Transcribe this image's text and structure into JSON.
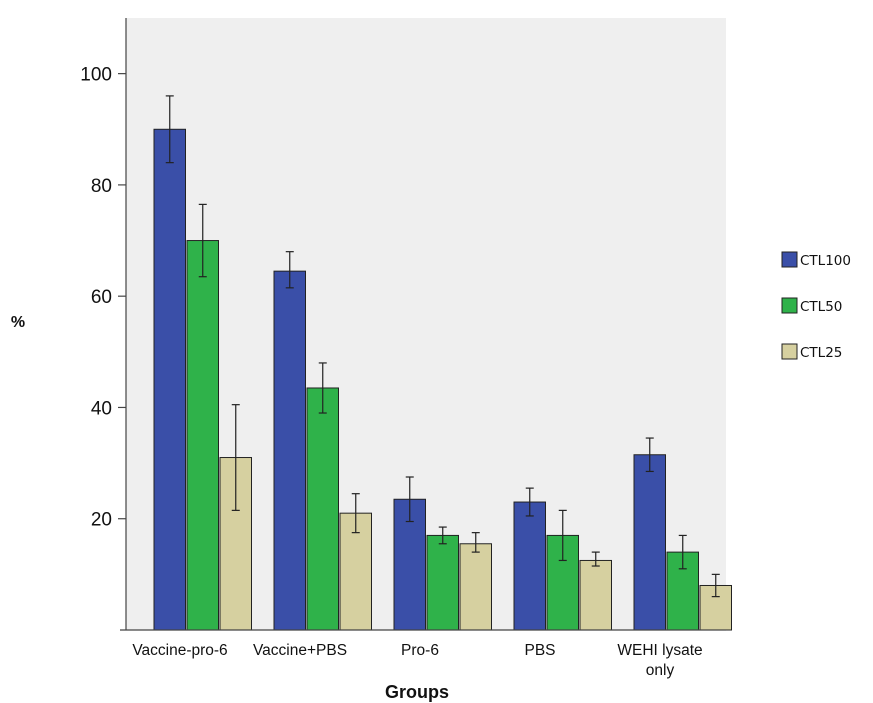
{
  "chart_data": {
    "type": "bar",
    "title": "",
    "xlabel": "Groups",
    "ylabel": "%",
    "ylim": [
      0,
      110
    ],
    "yticks": [
      20,
      40,
      60,
      80,
      100
    ],
    "grid": false,
    "legend_position": "right",
    "categories": [
      [
        "Vaccine-pro-6"
      ],
      [
        "Vaccine+PBS"
      ],
      [
        "Pro-6"
      ],
      [
        "PBS"
      ],
      [
        "WEHI lysate",
        "only"
      ]
    ],
    "series": [
      {
        "name": "CTL100",
        "color": "#3a4fa8",
        "values": [
          90,
          64.5,
          23.5,
          23,
          31.5
        ],
        "err_low": [
          84,
          61.5,
          19.5,
          20.5,
          28.5
        ],
        "err_high": [
          96,
          68,
          27.5,
          25.5,
          34.5
        ]
      },
      {
        "name": "CTL50",
        "color": "#2fb24a",
        "values": [
          70,
          43.5,
          17,
          17,
          14
        ],
        "err_low": [
          63.5,
          39,
          15.5,
          12.5,
          11
        ],
        "err_high": [
          76.5,
          48,
          18.5,
          21.5,
          17
        ]
      },
      {
        "name": "CTL25",
        "color": "#d6d0a0",
        "values": [
          31,
          21,
          15.5,
          12.5,
          8
        ],
        "err_low": [
          21.5,
          17.5,
          14,
          11.5,
          6
        ],
        "err_high": [
          40.5,
          24.5,
          17.5,
          14,
          10
        ]
      }
    ]
  }
}
